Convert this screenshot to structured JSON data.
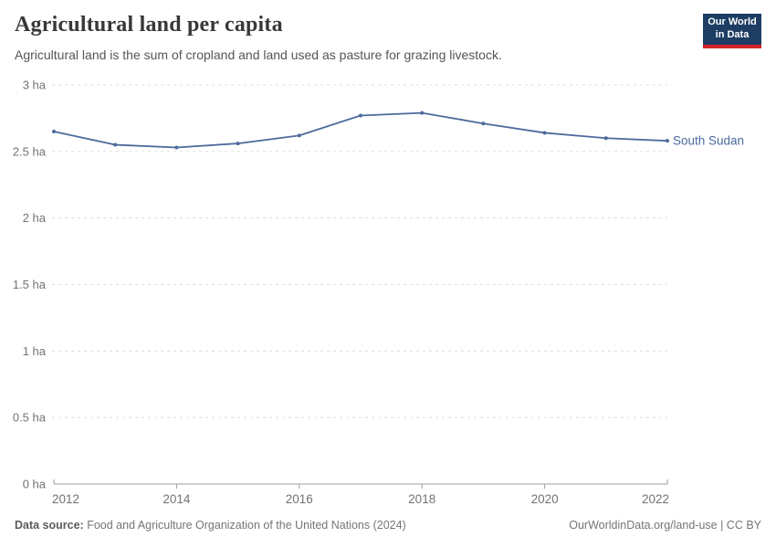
{
  "header": {
    "title": "Agricultural land per capita",
    "subtitle": "Agricultural land is the sum of cropland and land used as pasture for grazing livestock."
  },
  "logo": {
    "line1": "Our World",
    "line2": "in Data",
    "bg_color": "#1d3d63",
    "stripe_color": "#d42328"
  },
  "chart_data": {
    "type": "line",
    "title": "Agricultural land per capita",
    "x": [
      2012,
      2013,
      2014,
      2015,
      2016,
      2017,
      2018,
      2019,
      2020,
      2021,
      2022
    ],
    "series": [
      {
        "name": "South Sudan",
        "color": "#4c6a9c",
        "values": [
          2.65,
          2.55,
          2.53,
          2.56,
          2.62,
          2.77,
          2.79,
          2.71,
          2.64,
          2.6,
          2.58
        ]
      }
    ],
    "unit": "ha",
    "ylim": [
      0,
      3
    ],
    "yticks": [
      0,
      0.5,
      1,
      1.5,
      2,
      2.5,
      3
    ],
    "ytick_labels": [
      "0 ha",
      "0.5 ha",
      "1 ha",
      "1.5 ha",
      "2 ha",
      "2.5 ha",
      "3 ha"
    ],
    "xticks": [
      2012,
      2014,
      2016,
      2018,
      2020,
      2022
    ],
    "grid": "dashed-horizontal",
    "legend_position": "end-of-line",
    "gridline_color": "#dcdcdc",
    "axis_color": "#9e9e9e",
    "tick_label_color": "#737373"
  },
  "footer": {
    "source_label": "Data source:",
    "source_text": " Food and Agriculture Organization of the United Nations (2024)",
    "credit": "OurWorldinData.org/land-use | CC BY"
  }
}
